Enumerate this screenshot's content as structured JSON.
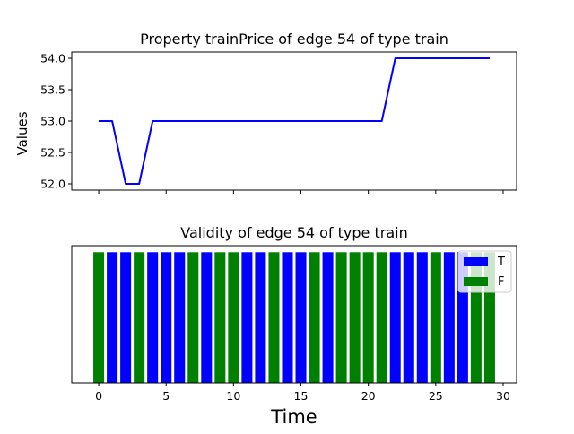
{
  "chart_data": [
    {
      "type": "line",
      "title": "Property trainPrice of edge 54 of type train",
      "xlabel": "",
      "ylabel": "Values",
      "xlim": [
        -2,
        31
      ],
      "ylim": [
        51.9,
        54.1
      ],
      "xticks": [
        0,
        5,
        10,
        15,
        20,
        25,
        30
      ],
      "yticks": [
        "52.0",
        "52.5",
        "53.0",
        "53.5",
        "54.0"
      ],
      "show_xtick_labels": false,
      "grid": false,
      "series": [
        {
          "color": "#0000ff",
          "x": [
            0,
            1,
            2,
            3,
            4,
            5,
            6,
            7,
            8,
            9,
            10,
            11,
            12,
            13,
            14,
            15,
            16,
            17,
            18,
            19,
            20,
            21,
            22,
            23,
            24,
            25,
            26,
            27,
            28,
            29
          ],
          "values": [
            53,
            53,
            52,
            52,
            53,
            53,
            53,
            53,
            53,
            53,
            53,
            53,
            53,
            53,
            53,
            53,
            53,
            53,
            53,
            53,
            53,
            53,
            54,
            54,
            54,
            54,
            54,
            54,
            54,
            54
          ]
        }
      ]
    },
    {
      "type": "bar",
      "title": "Validity of edge 54 of type train",
      "xlabel": "Time",
      "ylabel": "",
      "xlim": [
        -2,
        31
      ],
      "ylim": [
        0,
        1.05
      ],
      "xticks": [
        0,
        5,
        10,
        15,
        20,
        25,
        30
      ],
      "grid": false,
      "legend_position": "upper right",
      "legend": [
        {
          "label": "T",
          "color": "#0000ff"
        },
        {
          "label": "F",
          "color": "#008000"
        }
      ],
      "categories": [
        0,
        1,
        2,
        3,
        4,
        5,
        6,
        7,
        8,
        9,
        10,
        11,
        12,
        13,
        14,
        15,
        16,
        17,
        18,
        19,
        20,
        21,
        22,
        23,
        24,
        25,
        26,
        27,
        28,
        29
      ],
      "values": [
        "F",
        "T",
        "T",
        "F",
        "T",
        "T",
        "T",
        "F",
        "T",
        "F",
        "F",
        "T",
        "T",
        "F",
        "T",
        "T",
        "F",
        "T",
        "F",
        "F",
        "F",
        "F",
        "T",
        "T",
        "T",
        "F",
        "T",
        "T",
        "F",
        "F"
      ]
    }
  ]
}
